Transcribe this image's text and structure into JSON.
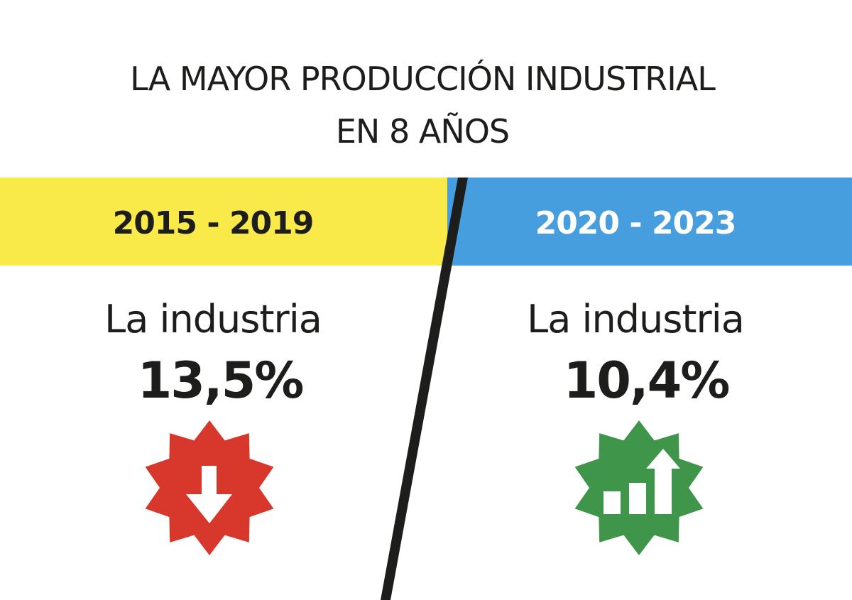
{
  "title": {
    "line1": "LA MAYOR PRODUCCIÓN INDUSTRIAL",
    "line2": "EN 8 AÑOS"
  },
  "left": {
    "period": "2015 - 2019",
    "label": "La industria",
    "value": "13,5%",
    "icon": "down-arrow-icon",
    "band_color": "#f9ea4a",
    "badge_color": "#d7382b"
  },
  "right": {
    "period": "2020 - 2023",
    "label": "La industria",
    "value": "10,4%",
    "icon": "growth-chart-icon",
    "band_color": "#479ede",
    "badge_color": "#3f954a"
  }
}
